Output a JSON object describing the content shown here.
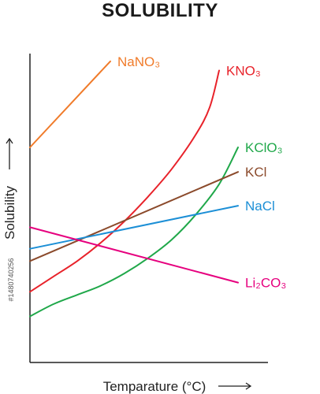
{
  "title": "SOLUBILITY",
  "side_code": "#1480740256",
  "chart_data": {
    "type": "line",
    "title": "SOLUBILITY",
    "xlabel": "Temparature (°C)",
    "ylabel": "Solubility",
    "xlim": [
      0,
      100
    ],
    "ylim": [
      0,
      100
    ],
    "grid": false,
    "legend": "none (series labelled at line ends)",
    "series": [
      {
        "name": "NaNO₃",
        "color": "#f07b2a",
        "x": [
          0,
          34
        ],
        "y": [
          70,
          98
        ]
      },
      {
        "name": "KNO₃",
        "color": "#e8222a",
        "x": [
          0,
          10,
          20,
          30,
          40,
          50,
          60,
          70,
          76,
          80
        ],
        "y": [
          23,
          28,
          33,
          39,
          46,
          54,
          63,
          74,
          83,
          95
        ]
      },
      {
        "name": "KClO₃",
        "color": "#20a84a",
        "x": [
          0,
          10,
          20,
          30,
          40,
          50,
          60,
          70,
          80,
          88
        ],
        "y": [
          15,
          19,
          22,
          25,
          29,
          34,
          40,
          48,
          58,
          70
        ]
      },
      {
        "name": "KCl",
        "color": "#8b4a2b",
        "x": [
          0,
          88
        ],
        "y": [
          33,
          62
        ]
      },
      {
        "name": "NaCl",
        "color": "#1c8fd6",
        "x": [
          0,
          88
        ],
        "y": [
          37,
          51
        ]
      },
      {
        "name": "Li₂CO₃",
        "color": "#e6007e",
        "x": [
          0,
          88
        ],
        "y": [
          44,
          26
        ]
      }
    ]
  }
}
